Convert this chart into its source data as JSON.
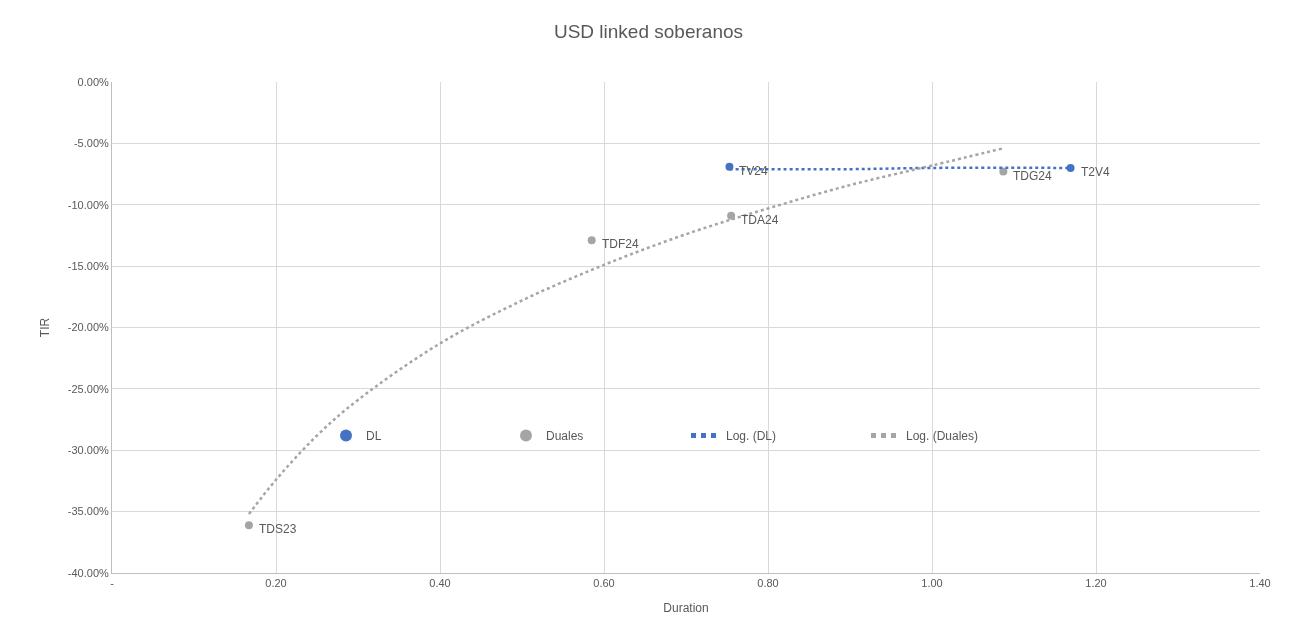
{
  "chart_data": {
    "type": "scatter",
    "title": "USD linked soberanos",
    "xlabel": "Duration",
    "ylabel": "TIR",
    "series": [
      {
        "name": "DL",
        "color": "#4472c4",
        "marker": "circle",
        "x": [
          0.753,
          1.169
        ],
        "values": [
          -6.9,
          -7.0
        ]
      },
      {
        "name": "Duales",
        "color": "#a5a5a5",
        "marker": "circle",
        "x": [
          0.167,
          0.585,
          0.755,
          1.087
        ],
        "values": [
          -36.1,
          -12.9,
          -10.9,
          -7.3
        ]
      },
      {
        "name": "Log. (DL)",
        "type": "line",
        "color": "#4472c4",
        "line_style": "dotted",
        "marker": "none",
        "x": [
          0.753,
          0.9,
          1.0,
          1.169
        ],
        "values": [
          -7.1,
          -7.1,
          -7.0,
          -7.0
        ]
      },
      {
        "name": "Log. (Duales)",
        "type": "line",
        "color": "#a5a5a5",
        "line_style": "dotted",
        "marker": "none",
        "x": [
          0.167,
          0.2,
          0.25,
          0.3,
          0.4,
          0.5,
          0.6,
          0.7,
          0.8,
          0.9,
          1.0,
          1.087
        ],
        "values": [
          -35.2,
          -32.4,
          -28.8,
          -25.9,
          -21.3,
          -17.8,
          -14.9,
          -12.4,
          -10.3,
          -8.4,
          -6.8,
          -5.4
        ]
      }
    ],
    "annotations": [
      {
        "text": "TV24",
        "x": 0.753,
        "y": -6.9
      },
      {
        "text": "T2V4",
        "x": 1.169,
        "y": -7.0
      },
      {
        "text": "TDS23",
        "x": 0.167,
        "y": -36.1
      },
      {
        "text": "TDF24",
        "x": 0.585,
        "y": -12.9
      },
      {
        "text": "TDA24",
        "x": 0.755,
        "y": -10.9
      },
      {
        "text": "TDG24",
        "x": 1.087,
        "y": -7.3
      }
    ],
    "xlim": [
      0,
      1.4
    ],
    "xticks": [
      {
        "value": 0,
        "label": "-"
      },
      {
        "value": 0.2,
        "label": "0.20"
      },
      {
        "value": 0.4,
        "label": "0.40"
      },
      {
        "value": 0.6,
        "label": "0.60"
      },
      {
        "value": 0.8,
        "label": "0.80"
      },
      {
        "value": 1.0,
        "label": "1.00"
      },
      {
        "value": 1.2,
        "label": "1.20"
      },
      {
        "value": 1.4,
        "label": "1.40"
      }
    ],
    "ylim": [
      -40,
      0
    ],
    "yticks": [
      {
        "value": 0,
        "label": "0.00%"
      },
      {
        "value": -5,
        "label": "-5.00%"
      },
      {
        "value": -10,
        "label": "-10.00%"
      },
      {
        "value": -15,
        "label": "-15.00%"
      },
      {
        "value": -20,
        "label": "-20.00%"
      },
      {
        "value": -25,
        "label": "-25.00%"
      },
      {
        "value": -30,
        "label": "-30.00%"
      },
      {
        "value": -35,
        "label": "-35.00%"
      },
      {
        "value": -40,
        "label": "-40.00%"
      }
    ],
    "grid": true,
    "legend": "bottom"
  }
}
